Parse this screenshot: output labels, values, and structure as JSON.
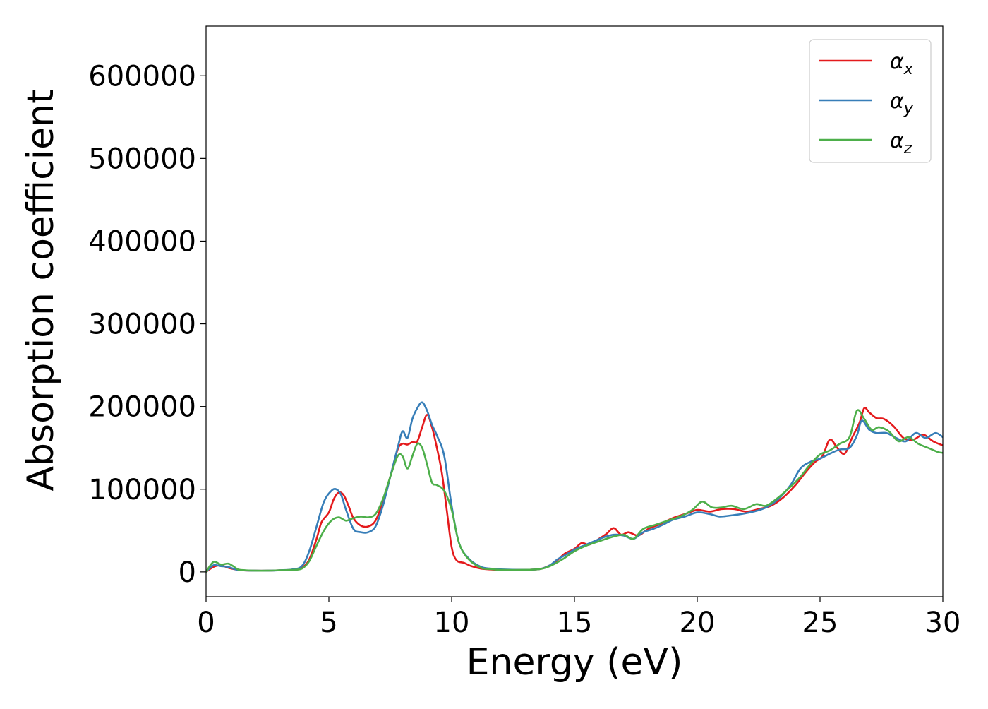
{
  "chart_data": {
    "type": "line",
    "title": "",
    "xlabel": "Energy (eV)",
    "ylabel": "Absorption coefficient",
    "xlim": [
      0,
      30
    ],
    "ylim": [
      -30000,
      660000
    ],
    "xticks": [
      0,
      5,
      10,
      15,
      20,
      25,
      30
    ],
    "xtick_labels": [
      "0",
      "5",
      "10",
      "15",
      "20",
      "25",
      "30"
    ],
    "yticks": [
      0,
      100000,
      200000,
      300000,
      400000,
      500000,
      600000
    ],
    "ytick_labels": [
      "0",
      "100000",
      "200000",
      "300000",
      "400000",
      "500000",
      "600000"
    ],
    "grid": false,
    "legend_position": "top-right",
    "series": [
      {
        "name": "α_x",
        "label_main": "α",
        "label_sub": "x",
        "color": "#e41a1c",
        "x": [
          0,
          0.3,
          0.6,
          0.9,
          1.2,
          1.5,
          2,
          2.5,
          3,
          3.5,
          3.9,
          4.2,
          4.5,
          4.7,
          5.0,
          5.2,
          5.4,
          5.6,
          5.8,
          6.0,
          6.3,
          6.6,
          6.9,
          7.2,
          7.5,
          7.8,
          8.0,
          8.2,
          8.4,
          8.6,
          8.8,
          9.0,
          9.2,
          9.4,
          9.6,
          9.8,
          10.0,
          10.2,
          10.5,
          10.8,
          11.2,
          11.6,
          12,
          13,
          13.6,
          14.0,
          14.3,
          14.6,
          15.0,
          15.3,
          15.6,
          16.0,
          16.3,
          16.6,
          16.9,
          17.2,
          17.6,
          18.0,
          18.5,
          19.0,
          19.5,
          20.0,
          20.5,
          21.0,
          21.5,
          22.0,
          22.5,
          23.0,
          23.5,
          24.0,
          24.4,
          24.8,
          25.1,
          25.4,
          25.7,
          26.0,
          26.3,
          26.6,
          26.8,
          27.0,
          27.3,
          27.6,
          28.0,
          28.4,
          28.8,
          29.2,
          29.6,
          30.0
        ],
        "y": [
          0,
          6000,
          8000,
          5000,
          3000,
          2000,
          1500,
          1500,
          2000,
          2500,
          5000,
          15000,
          40000,
          60000,
          72000,
          88000,
          96000,
          93000,
          80000,
          65000,
          56000,
          55000,
          62000,
          85000,
          115000,
          148000,
          155000,
          154000,
          157000,
          158000,
          175000,
          190000,
          175000,
          150000,
          120000,
          75000,
          30000,
          14000,
          11000,
          7000,
          4000,
          3000,
          2500,
          2500,
          3500,
          8000,
          14000,
          22000,
          28000,
          35000,
          33000,
          40000,
          46000,
          53000,
          45000,
          48000,
          44000,
          52000,
          58000,
          65000,
          70000,
          75000,
          73000,
          76000,
          76000,
          73000,
          76000,
          80000,
          90000,
          105000,
          120000,
          133000,
          140000,
          160000,
          150000,
          143000,
          162000,
          180000,
          198000,
          193000,
          186000,
          185000,
          176000,
          162000,
          160000,
          166000,
          158000,
          153000
        ]
      },
      {
        "name": "α_y",
        "label_main": "α",
        "label_sub": "y",
        "color": "#377eb8",
        "x": [
          0,
          0.3,
          0.6,
          0.9,
          1.2,
          1.5,
          2,
          2.5,
          3,
          3.5,
          3.9,
          4.2,
          4.5,
          4.8,
          5.1,
          5.3,
          5.5,
          5.7,
          6.0,
          6.3,
          6.6,
          6.9,
          7.2,
          7.5,
          7.8,
          8.0,
          8.2,
          8.4,
          8.6,
          8.8,
          9.0,
          9.2,
          9.4,
          9.7,
          10.0,
          10.3,
          10.7,
          11.2,
          11.6,
          12,
          13,
          13.6,
          14.0,
          14.3,
          14.6,
          15.0,
          15.4,
          15.8,
          16.2,
          16.6,
          17.0,
          17.4,
          17.8,
          18.2,
          18.6,
          19.0,
          19.5,
          20.0,
          20.5,
          20.9,
          21.3,
          21.8,
          22.3,
          22.8,
          23.3,
          23.8,
          24.2,
          24.6,
          25.0,
          25.4,
          25.8,
          26.2,
          26.5,
          26.7,
          27.0,
          27.3,
          27.7,
          28.1,
          28.5,
          28.9,
          29.3,
          29.7,
          30.0
        ],
        "y": [
          0,
          8000,
          7000,
          6000,
          3000,
          2000,
          1500,
          1500,
          2000,
          3000,
          7000,
          25000,
          55000,
          85000,
          98000,
          100000,
          93000,
          75000,
          52000,
          48000,
          48000,
          55000,
          80000,
          115000,
          150000,
          170000,
          162000,
          185000,
          198000,
          205000,
          195000,
          178000,
          165000,
          140000,
          80000,
          35000,
          16000,
          6000,
          4000,
          3000,
          2500,
          3500,
          8000,
          15000,
          20000,
          27000,
          32000,
          37000,
          42000,
          45000,
          44000,
          40000,
          48000,
          52000,
          57000,
          63000,
          67000,
          72000,
          70000,
          67000,
          68000,
          70000,
          73000,
          78000,
          88000,
          105000,
          125000,
          133000,
          137000,
          143000,
          148000,
          150000,
          165000,
          183000,
          172000,
          168000,
          168000,
          162000,
          158000,
          168000,
          162000,
          168000,
          163000
        ]
      },
      {
        "name": "α_z",
        "label_main": "α",
        "label_sub": "z",
        "color": "#4daf4a",
        "x": [
          0,
          0.3,
          0.6,
          0.9,
          1.1,
          1.3,
          1.6,
          2,
          2.5,
          3,
          3.5,
          3.9,
          4.2,
          4.5,
          4.8,
          5.1,
          5.4,
          5.7,
          6.0,
          6.3,
          6.6,
          6.9,
          7.2,
          7.5,
          7.8,
          8.0,
          8.2,
          8.4,
          8.6,
          8.8,
          9.0,
          9.2,
          9.4,
          9.7,
          10.0,
          10.3,
          10.7,
          11.2,
          11.6,
          12,
          13,
          13.6,
          14.0,
          14.5,
          15.0,
          15.5,
          16.0,
          16.5,
          17.0,
          17.4,
          17.8,
          18.3,
          18.8,
          19.3,
          19.8,
          20.2,
          20.6,
          21.0,
          21.4,
          21.9,
          22.4,
          22.8,
          23.3,
          23.8,
          24.2,
          24.6,
          25.0,
          25.4,
          25.8,
          26.2,
          26.5,
          26.8,
          27.1,
          27.4,
          27.8,
          28.2,
          28.6,
          29.0,
          29.4,
          29.8,
          30.0
        ],
        "y": [
          0,
          12000,
          9000,
          10000,
          7000,
          3000,
          2000,
          1500,
          1500,
          2000,
          2500,
          4000,
          13000,
          32000,
          50000,
          62000,
          66000,
          62000,
          65000,
          67000,
          66000,
          70000,
          88000,
          115000,
          140000,
          140000,
          125000,
          140000,
          155000,
          150000,
          130000,
          108000,
          105000,
          98000,
          75000,
          35000,
          15000,
          5000,
          3500,
          2500,
          2500,
          3500,
          7000,
          15000,
          25000,
          32000,
          37000,
          42000,
          45000,
          40000,
          52000,
          57000,
          62000,
          67000,
          75000,
          85000,
          78000,
          78000,
          80000,
          76000,
          82000,
          80000,
          90000,
          103000,
          115000,
          130000,
          142000,
          147000,
          155000,
          163000,
          195000,
          185000,
          172000,
          175000,
          170000,
          158000,
          163000,
          155000,
          150000,
          145000,
          144000
        ]
      }
    ]
  }
}
